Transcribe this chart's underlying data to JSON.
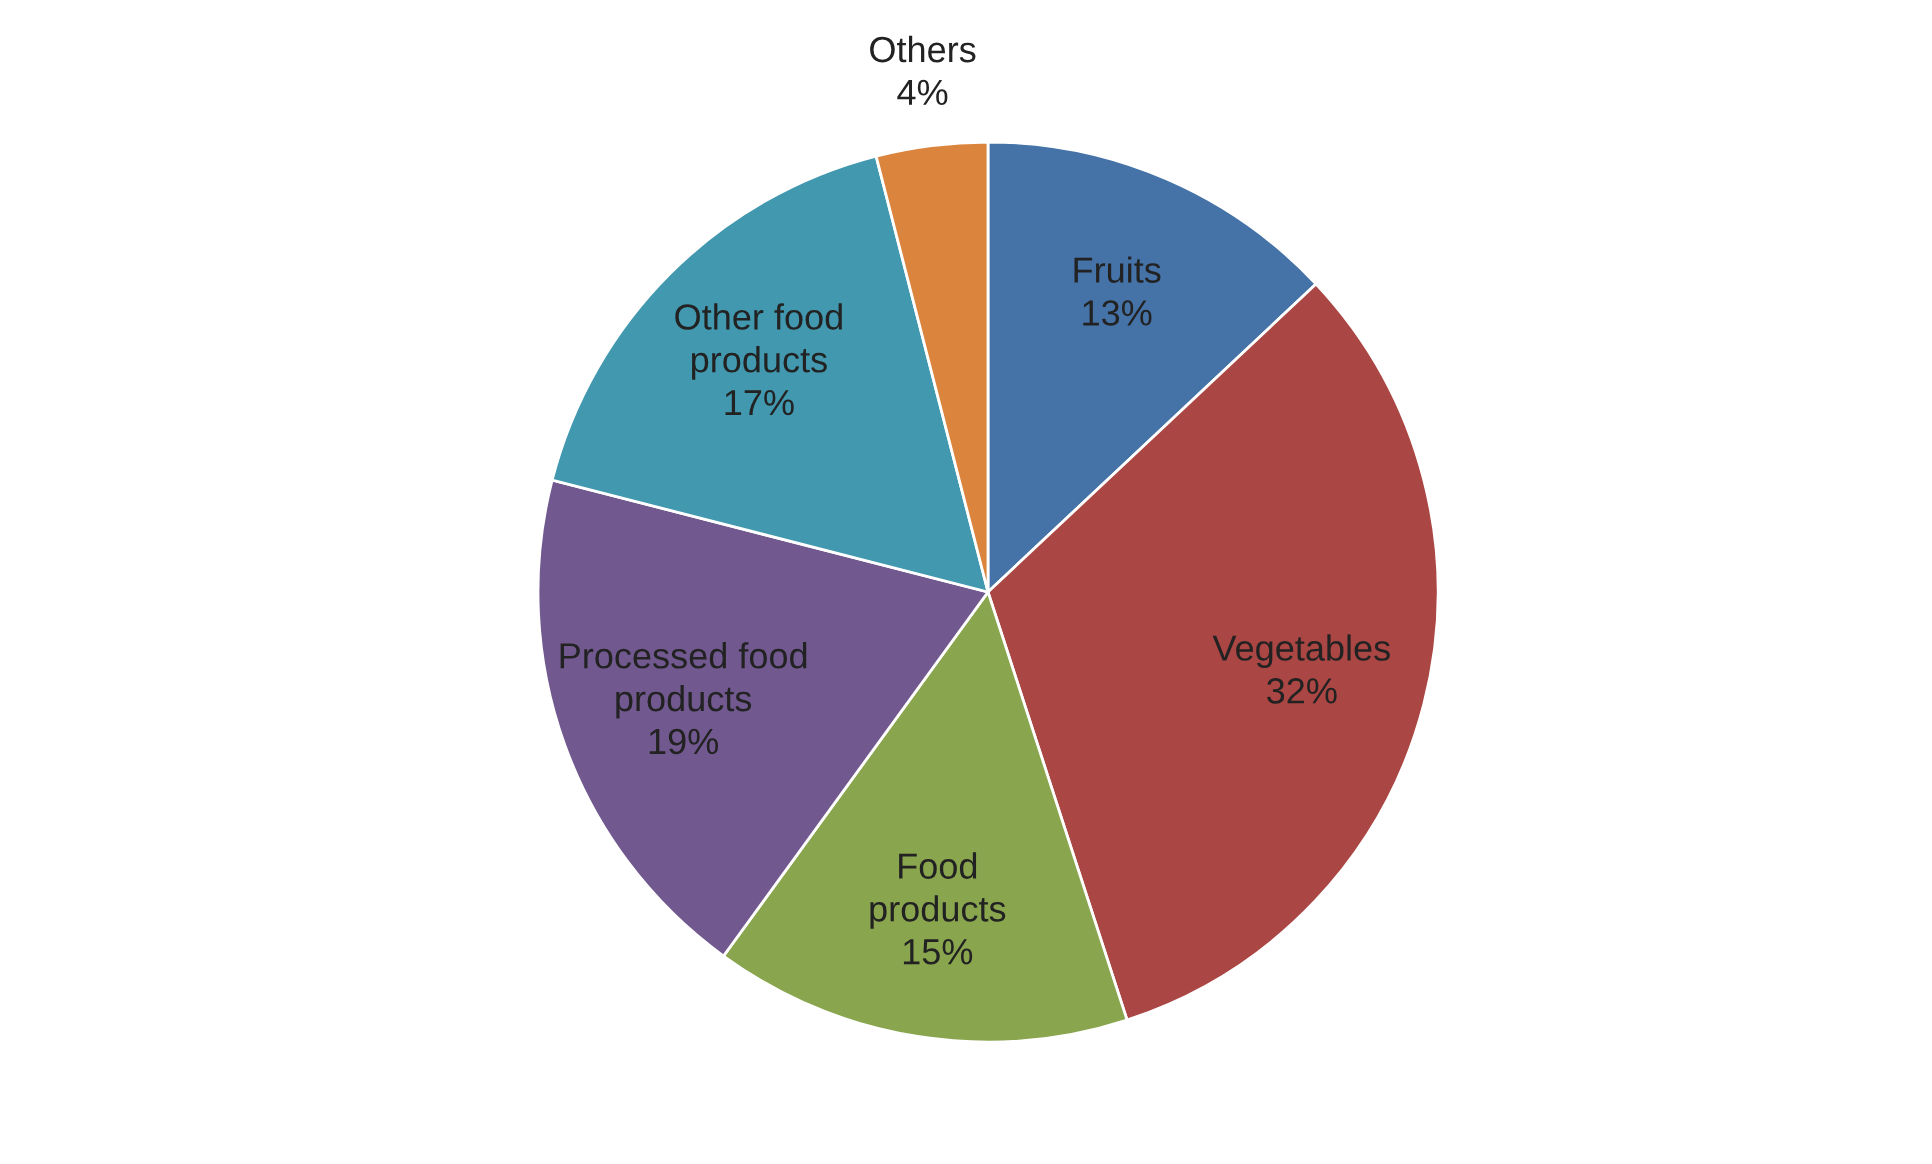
{
  "chart_data": {
    "type": "pie",
    "categories": [
      "Fruits",
      "Vegetables",
      "Food products",
      "Processed food products",
      "Other food products",
      "Others"
    ],
    "values": [
      13,
      32,
      15,
      19,
      17,
      4
    ],
    "value_labels": [
      "13%",
      "32%",
      "15%",
      "19%",
      "17%",
      "4%"
    ],
    "colors": [
      "#4572a7",
      "#aa4643",
      "#89a54e",
      "#71588f",
      "#4198af",
      "#db843d"
    ],
    "legend": false
  }
}
